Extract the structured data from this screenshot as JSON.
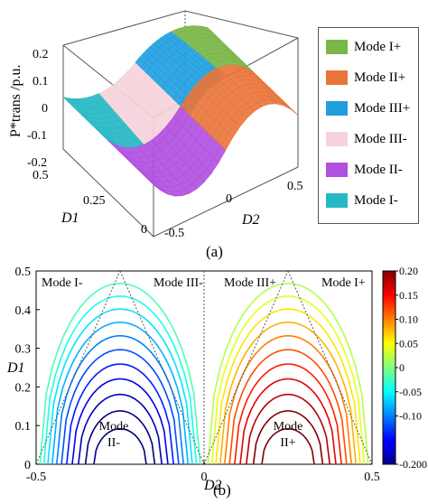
{
  "panel_a": {
    "caption": "(a)",
    "z_axis_label": "P*trans /p.u.",
    "z_ticks": [
      "0.2",
      "0.1",
      "0",
      "-0.1",
      "-0.2"
    ],
    "d1_label": "D1",
    "d1_ticks": [
      "0.5",
      "0.25",
      "0"
    ],
    "d2_label": "D2",
    "d2_ticks": [
      "-0.5",
      "0",
      "0.5"
    ],
    "legend": [
      {
        "label": "Mode I+",
        "color": "#7ab648"
      },
      {
        "label": "Mode II+",
        "color": "#e9743a"
      },
      {
        "label": "Mode III+",
        "color": "#1f9fe0"
      },
      {
        "label": "Mode III-",
        "color": "#f6d3dc"
      },
      {
        "label": "Mode II-",
        "color": "#b04fe0"
      },
      {
        "label": "Mode I-",
        "color": "#27b8c4"
      }
    ]
  },
  "panel_b": {
    "caption": "(b)",
    "region_labels": {
      "mode_i_minus": "Mode I-",
      "mode_iii_minus": "Mode III-",
      "mode_iii_plus": "Mode III+",
      "mode_i_plus": "Mode I+",
      "mode_ii_minus_line1": "Mode",
      "mode_ii_minus_line2": "II-",
      "mode_ii_plus_line1": "Mode",
      "mode_ii_plus_line2": "II+"
    },
    "colorbar_ticks": [
      "0.20",
      "0.15",
      "0.10",
      "0.05",
      "0",
      "-0.05",
      "-0.10",
      "-0.200"
    ]
  },
  "chart_data": [
    {
      "type": "surface",
      "x_axis": {
        "label": "D2",
        "range": [
          -0.5,
          0.5
        ],
        "ticks": [
          -0.5,
          0,
          0.5
        ]
      },
      "y_axis": {
        "label": "D1",
        "range": [
          0,
          0.5
        ],
        "ticks": [
          0,
          0.25,
          0.5
        ]
      },
      "z_axis": {
        "label": "P*trans /p.u.",
        "range": [
          -0.2,
          0.2
        ],
        "ticks": [
          -0.2,
          -0.1,
          0,
          0.1,
          0.2
        ]
      },
      "series": [
        {
          "name": "Mode I+"
        },
        {
          "name": "Mode II+"
        },
        {
          "name": "Mode III+"
        },
        {
          "name": "Mode III-"
        },
        {
          "name": "Mode II-"
        },
        {
          "name": "Mode I-"
        }
      ],
      "legend_position": "right"
    },
    {
      "type": "contour",
      "x_axis": {
        "label": "D2",
        "range": [
          -0.5,
          0.5
        ],
        "ticks": [
          -0.5,
          0,
          0.5
        ]
      },
      "y_axis": {
        "label": "D1",
        "range": [
          0,
          0.5
        ],
        "ticks": [
          0,
          0.1,
          0.2,
          0.3,
          0.4,
          0.5
        ]
      },
      "colorbar": {
        "range": [
          -0.2,
          0.2
        ],
        "ticks": [
          0.2,
          0.15,
          0.1,
          0.05,
          0,
          -0.05,
          -0.1,
          -0.2
        ],
        "colormap": "jet"
      },
      "levels": [
        -0.22,
        -0.2,
        -0.18,
        -0.16,
        -0.14,
        -0.12,
        -0.1,
        -0.08,
        -0.06,
        -0.04,
        -0.02,
        0.02,
        0.04,
        0.06,
        0.08,
        0.1,
        0.12,
        0.14,
        0.16,
        0.18,
        0.2,
        0.22
      ],
      "peak_points": [
        {
          "x": -0.25,
          "y": 0,
          "value": -0.25
        },
        {
          "x": 0.25,
          "y": 0,
          "value": 0.25
        }
      ],
      "region_boundaries": [
        {
          "from": [
            -0.5,
            0
          ],
          "to": [
            -0.25,
            0.5
          ]
        },
        {
          "from": [
            -0.25,
            0.5
          ],
          "to": [
            0,
            0
          ]
        },
        {
          "from": [
            0,
            0
          ],
          "to": [
            0.25,
            0.5
          ]
        },
        {
          "from": [
            0.25,
            0.5
          ],
          "to": [
            0.5,
            0
          ]
        },
        {
          "from": [
            0,
            0
          ],
          "to": [
            0,
            0.5
          ]
        }
      ]
    }
  ]
}
